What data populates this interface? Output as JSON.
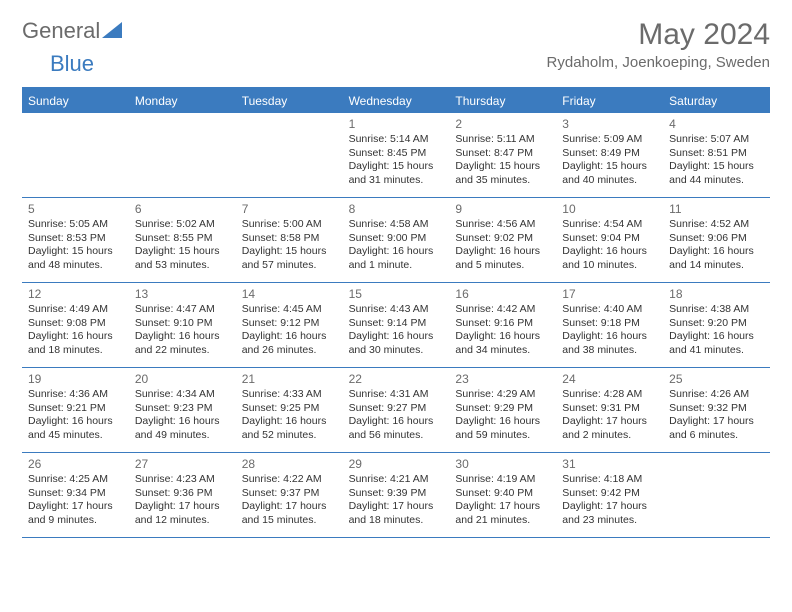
{
  "logo": {
    "text1": "General",
    "text2": "Blue"
  },
  "header": {
    "month": "May 2024",
    "location": "Rydaholm, Joenkoeping, Sweden"
  },
  "colors": {
    "accent": "#3b7bbf",
    "header_text": "#6b6b6b",
    "body_text": "#333333",
    "bg": "#ffffff"
  },
  "dow": [
    "Sunday",
    "Monday",
    "Tuesday",
    "Wednesday",
    "Thursday",
    "Friday",
    "Saturday"
  ],
  "weeks": [
    [
      null,
      null,
      null,
      {
        "n": "1",
        "lines": [
          "Sunrise: 5:14 AM",
          "Sunset: 8:45 PM",
          "Daylight: 15 hours",
          "and 31 minutes."
        ]
      },
      {
        "n": "2",
        "lines": [
          "Sunrise: 5:11 AM",
          "Sunset: 8:47 PM",
          "Daylight: 15 hours",
          "and 35 minutes."
        ]
      },
      {
        "n": "3",
        "lines": [
          "Sunrise: 5:09 AM",
          "Sunset: 8:49 PM",
          "Daylight: 15 hours",
          "and 40 minutes."
        ]
      },
      {
        "n": "4",
        "lines": [
          "Sunrise: 5:07 AM",
          "Sunset: 8:51 PM",
          "Daylight: 15 hours",
          "and 44 minutes."
        ]
      }
    ],
    [
      {
        "n": "5",
        "lines": [
          "Sunrise: 5:05 AM",
          "Sunset: 8:53 PM",
          "Daylight: 15 hours",
          "and 48 minutes."
        ]
      },
      {
        "n": "6",
        "lines": [
          "Sunrise: 5:02 AM",
          "Sunset: 8:55 PM",
          "Daylight: 15 hours",
          "and 53 minutes."
        ]
      },
      {
        "n": "7",
        "lines": [
          "Sunrise: 5:00 AM",
          "Sunset: 8:58 PM",
          "Daylight: 15 hours",
          "and 57 minutes."
        ]
      },
      {
        "n": "8",
        "lines": [
          "Sunrise: 4:58 AM",
          "Sunset: 9:00 PM",
          "Daylight: 16 hours",
          "and 1 minute."
        ]
      },
      {
        "n": "9",
        "lines": [
          "Sunrise: 4:56 AM",
          "Sunset: 9:02 PM",
          "Daylight: 16 hours",
          "and 5 minutes."
        ]
      },
      {
        "n": "10",
        "lines": [
          "Sunrise: 4:54 AM",
          "Sunset: 9:04 PM",
          "Daylight: 16 hours",
          "and 10 minutes."
        ]
      },
      {
        "n": "11",
        "lines": [
          "Sunrise: 4:52 AM",
          "Sunset: 9:06 PM",
          "Daylight: 16 hours",
          "and 14 minutes."
        ]
      }
    ],
    [
      {
        "n": "12",
        "lines": [
          "Sunrise: 4:49 AM",
          "Sunset: 9:08 PM",
          "Daylight: 16 hours",
          "and 18 minutes."
        ]
      },
      {
        "n": "13",
        "lines": [
          "Sunrise: 4:47 AM",
          "Sunset: 9:10 PM",
          "Daylight: 16 hours",
          "and 22 minutes."
        ]
      },
      {
        "n": "14",
        "lines": [
          "Sunrise: 4:45 AM",
          "Sunset: 9:12 PM",
          "Daylight: 16 hours",
          "and 26 minutes."
        ]
      },
      {
        "n": "15",
        "lines": [
          "Sunrise: 4:43 AM",
          "Sunset: 9:14 PM",
          "Daylight: 16 hours",
          "and 30 minutes."
        ]
      },
      {
        "n": "16",
        "lines": [
          "Sunrise: 4:42 AM",
          "Sunset: 9:16 PM",
          "Daylight: 16 hours",
          "and 34 minutes."
        ]
      },
      {
        "n": "17",
        "lines": [
          "Sunrise: 4:40 AM",
          "Sunset: 9:18 PM",
          "Daylight: 16 hours",
          "and 38 minutes."
        ]
      },
      {
        "n": "18",
        "lines": [
          "Sunrise: 4:38 AM",
          "Sunset: 9:20 PM",
          "Daylight: 16 hours",
          "and 41 minutes."
        ]
      }
    ],
    [
      {
        "n": "19",
        "lines": [
          "Sunrise: 4:36 AM",
          "Sunset: 9:21 PM",
          "Daylight: 16 hours",
          "and 45 minutes."
        ]
      },
      {
        "n": "20",
        "lines": [
          "Sunrise: 4:34 AM",
          "Sunset: 9:23 PM",
          "Daylight: 16 hours",
          "and 49 minutes."
        ]
      },
      {
        "n": "21",
        "lines": [
          "Sunrise: 4:33 AM",
          "Sunset: 9:25 PM",
          "Daylight: 16 hours",
          "and 52 minutes."
        ]
      },
      {
        "n": "22",
        "lines": [
          "Sunrise: 4:31 AM",
          "Sunset: 9:27 PM",
          "Daylight: 16 hours",
          "and 56 minutes."
        ]
      },
      {
        "n": "23",
        "lines": [
          "Sunrise: 4:29 AM",
          "Sunset: 9:29 PM",
          "Daylight: 16 hours",
          "and 59 minutes."
        ]
      },
      {
        "n": "24",
        "lines": [
          "Sunrise: 4:28 AM",
          "Sunset: 9:31 PM",
          "Daylight: 17 hours",
          "and 2 minutes."
        ]
      },
      {
        "n": "25",
        "lines": [
          "Sunrise: 4:26 AM",
          "Sunset: 9:32 PM",
          "Daylight: 17 hours",
          "and 6 minutes."
        ]
      }
    ],
    [
      {
        "n": "26",
        "lines": [
          "Sunrise: 4:25 AM",
          "Sunset: 9:34 PM",
          "Daylight: 17 hours",
          "and 9 minutes."
        ]
      },
      {
        "n": "27",
        "lines": [
          "Sunrise: 4:23 AM",
          "Sunset: 9:36 PM",
          "Daylight: 17 hours",
          "and 12 minutes."
        ]
      },
      {
        "n": "28",
        "lines": [
          "Sunrise: 4:22 AM",
          "Sunset: 9:37 PM",
          "Daylight: 17 hours",
          "and 15 minutes."
        ]
      },
      {
        "n": "29",
        "lines": [
          "Sunrise: 4:21 AM",
          "Sunset: 9:39 PM",
          "Daylight: 17 hours",
          "and 18 minutes."
        ]
      },
      {
        "n": "30",
        "lines": [
          "Sunrise: 4:19 AM",
          "Sunset: 9:40 PM",
          "Daylight: 17 hours",
          "and 21 minutes."
        ]
      },
      {
        "n": "31",
        "lines": [
          "Sunrise: 4:18 AM",
          "Sunset: 9:42 PM",
          "Daylight: 17 hours",
          "and 23 minutes."
        ]
      },
      null
    ]
  ]
}
